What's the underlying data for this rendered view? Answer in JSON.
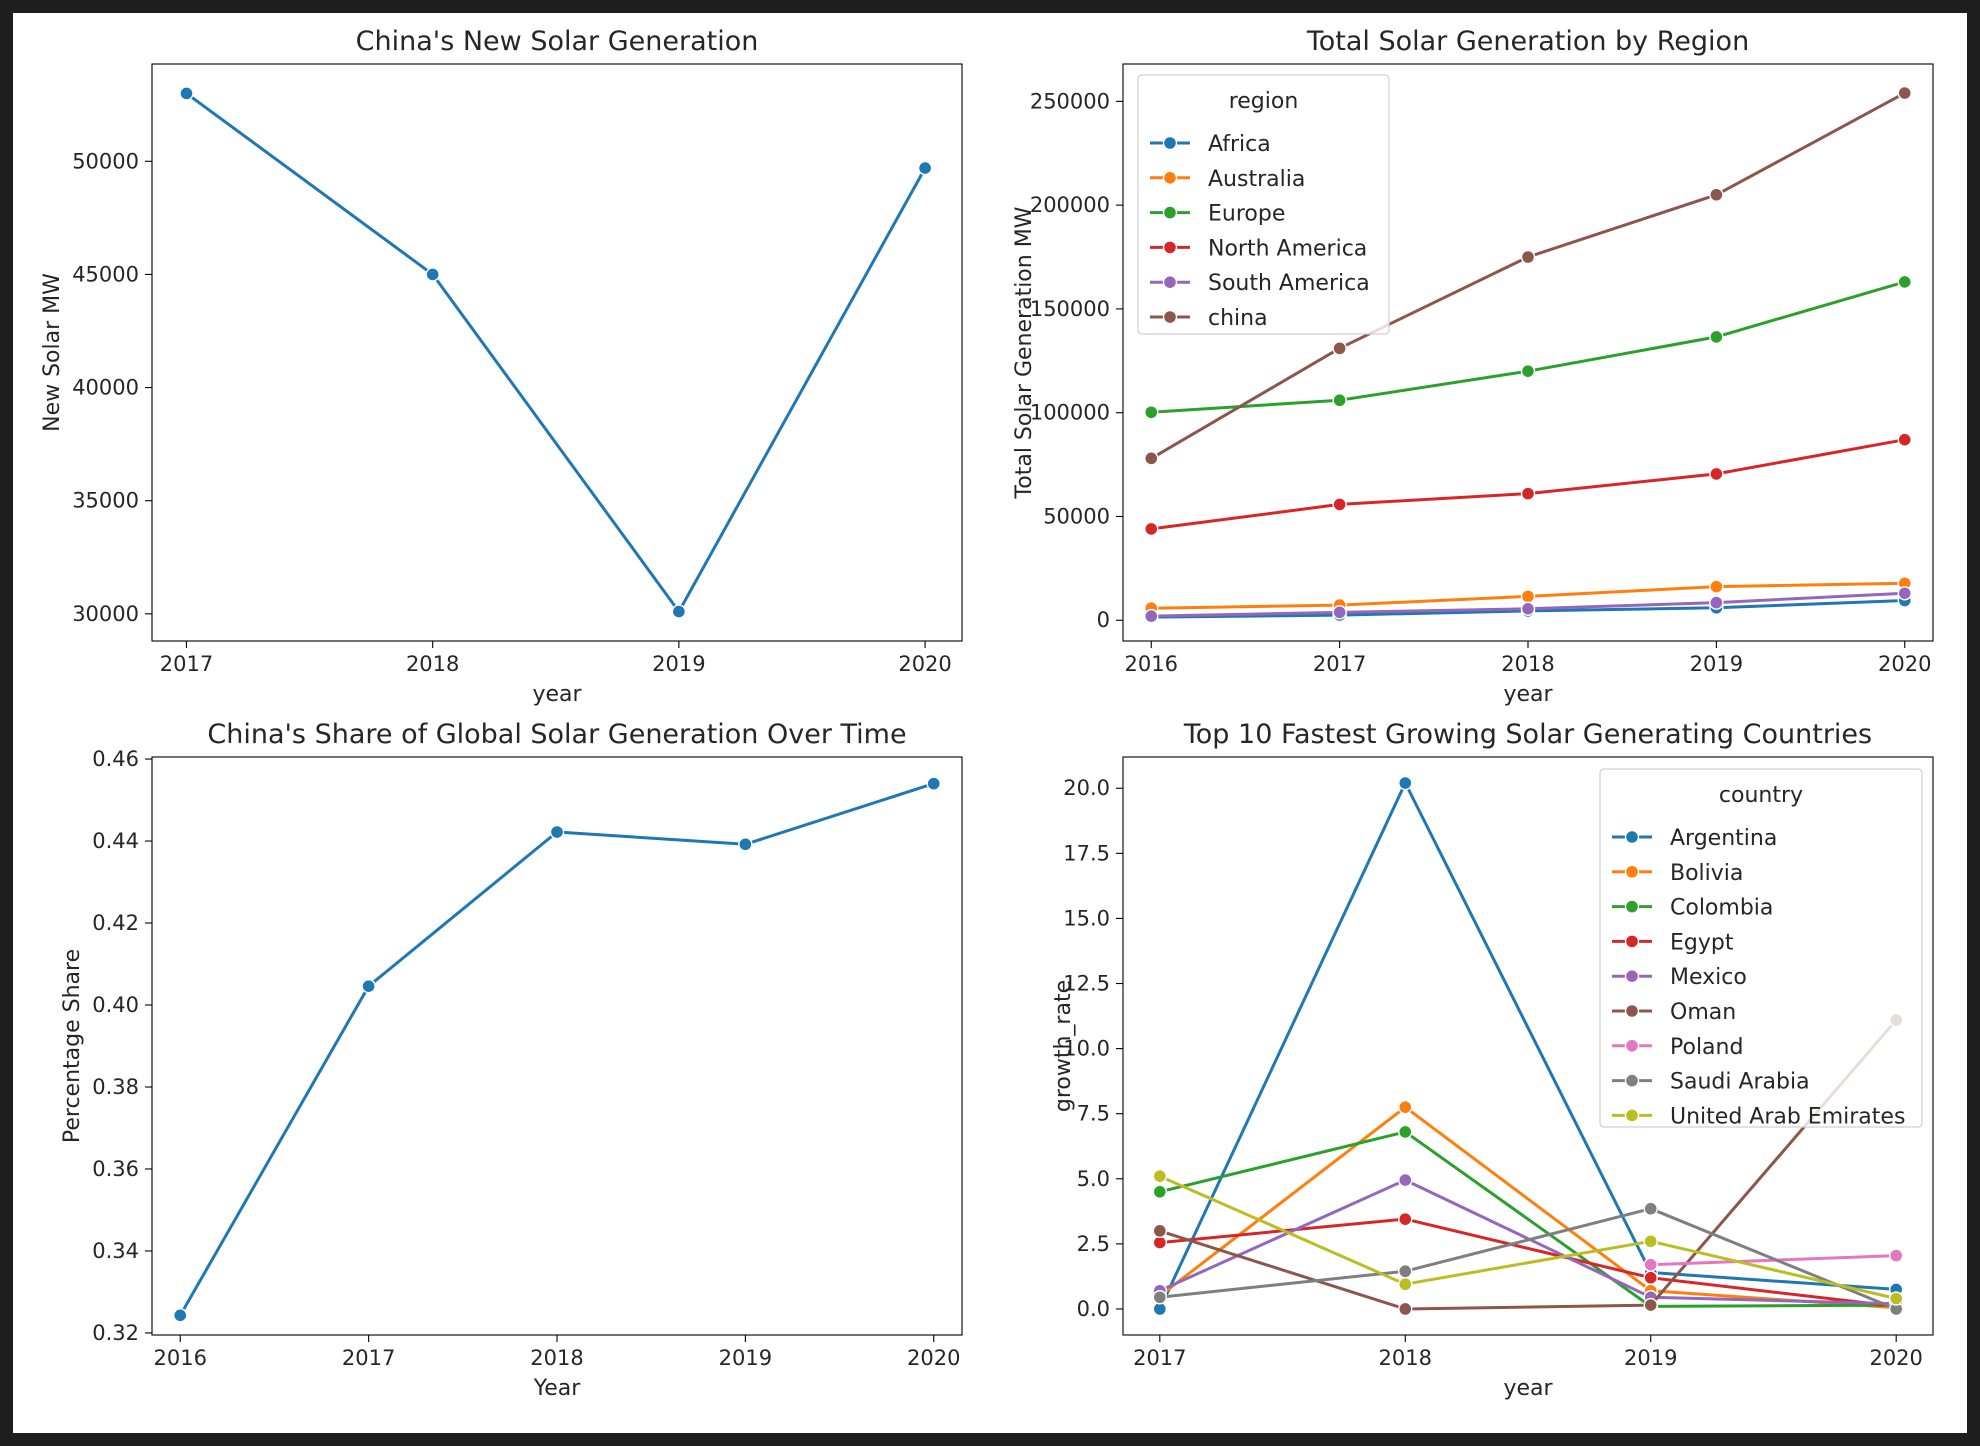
{
  "colors": {
    "tab_blue": "#1f77b4",
    "tab_orange": "#ff7f0e",
    "tab_green": "#2ca02c",
    "tab_red": "#d62728",
    "tab_purple": "#9467bd",
    "tab_brown": "#8c564b",
    "tab_pink": "#e377c2",
    "tab_gray": "#7f7f7f",
    "tab_olive": "#bcbd22"
  },
  "chart_data": [
    {
      "type": "line",
      "title": "China's New Solar Generation",
      "xlabel": "year",
      "ylabel": "New Solar MW",
      "x": [
        2017,
        2018,
        2019,
        2020
      ],
      "xticks": [
        "2017",
        "2018",
        "2019",
        "2020"
      ],
      "xlim": [
        2016.86,
        2020.15
      ],
      "ylim": [
        28800,
        54300
      ],
      "yticks": [
        30000,
        35000,
        40000,
        45000,
        50000
      ],
      "yticklabels": [
        "30000",
        "35000",
        "40000",
        "45000",
        "50000"
      ],
      "grid": false,
      "series": [
        {
          "color": "#1f77b4",
          "values": [
            53000,
            45000,
            30100,
            49700
          ]
        }
      ]
    },
    {
      "type": "line",
      "title": "Total Solar Generation by Region",
      "xlabel": "year",
      "ylabel": "Total Solar Generation MW",
      "x": [
        2016,
        2017,
        2018,
        2019,
        2020
      ],
      "xticks": [
        "2016",
        "2017",
        "2018",
        "2019",
        "2020"
      ],
      "xlim": [
        2015.85,
        2020.15
      ],
      "ylim": [
        -10000,
        268000
      ],
      "yticks": [
        0,
        50000,
        100000,
        150000,
        200000,
        250000
      ],
      "yticklabels": [
        "0",
        "50000",
        "100000",
        "150000",
        "200000",
        "250000"
      ],
      "grid": false,
      "legend": {
        "title": "region",
        "placement": "upper-left"
      },
      "series": [
        {
          "name": "Africa",
          "color": "#1f77b4",
          "values": [
            1500,
            2500,
            4500,
            6000,
            9500
          ]
        },
        {
          "name": "Australia",
          "color": "#ff7f0e",
          "values": [
            5800,
            7300,
            11500,
            16200,
            17800
          ]
        },
        {
          "name": "Europe",
          "color": "#2ca02c",
          "values": [
            100200,
            106000,
            120000,
            136500,
            163000
          ]
        },
        {
          "name": "North America",
          "color": "#d62728",
          "values": [
            44000,
            55800,
            61000,
            70500,
            87000
          ]
        },
        {
          "name": "South America",
          "color": "#9467bd",
          "values": [
            2000,
            3800,
            5500,
            8500,
            13000
          ]
        },
        {
          "name": "china",
          "color": "#8c564b",
          "values": [
            78000,
            131000,
            175000,
            205000,
            254000
          ]
        }
      ]
    },
    {
      "type": "line",
      "title": "China's Share of Global Solar Generation Over Time",
      "xlabel": "Year",
      "ylabel": "Percentage Share",
      "x": [
        2016,
        2017,
        2018,
        2019,
        2020
      ],
      "xticks": [
        "2016",
        "2017",
        "2018",
        "2019",
        "2020"
      ],
      "xlim": [
        2015.85,
        2020.15
      ],
      "ylim": [
        0.3195,
        0.4605
      ],
      "yticks": [
        0.32,
        0.34,
        0.36,
        0.38,
        0.4,
        0.42,
        0.44,
        0.46
      ],
      "yticklabels": [
        "0.32",
        "0.34",
        "0.36",
        "0.38",
        "0.40",
        "0.42",
        "0.44",
        "0.46"
      ],
      "grid": false,
      "series": [
        {
          "color": "#1f77b4",
          "values": [
            0.3243,
            0.4046,
            0.4422,
            0.4392,
            0.454
          ]
        }
      ]
    },
    {
      "type": "line",
      "title": "Top 10 Fastest Growing Solar Generating Countries",
      "xlabel": "year",
      "ylabel": "growth_rate",
      "x": [
        2017,
        2018,
        2019,
        2020
      ],
      "xticks": [
        "2017",
        "2018",
        "2019",
        "2020"
      ],
      "xlim": [
        2016.85,
        2020.15
      ],
      "ylim": [
        -1.0,
        21.2
      ],
      "yticks": [
        0,
        2.5,
        5,
        7.5,
        10,
        12.5,
        15,
        17.5,
        20
      ],
      "yticklabels": [
        "0.0",
        "2.5",
        "5.0",
        "7.5",
        "10.0",
        "12.5",
        "15.0",
        "17.5",
        "20.0"
      ],
      "grid": false,
      "legend": {
        "title": "country",
        "placement": "upper-right"
      },
      "series": [
        {
          "name": "Argentina",
          "color": "#1f77b4",
          "x": [
            2017,
            2018,
            2019,
            2020
          ],
          "values": [
            0.0,
            20.2,
            1.4,
            0.75
          ]
        },
        {
          "name": "Bolivia",
          "color": "#ff7f0e",
          "x": [
            2017,
            2018,
            2019,
            2020
          ],
          "values": [
            0.5,
            7.75,
            0.7,
            0.05
          ]
        },
        {
          "name": "Colombia",
          "color": "#2ca02c",
          "x": [
            2017,
            2018,
            2019,
            2020
          ],
          "values": [
            4.5,
            6.8,
            0.1,
            0.15
          ]
        },
        {
          "name": "Egypt",
          "color": "#d62728",
          "x": [
            2017,
            2018,
            2019,
            2020
          ],
          "values": [
            2.55,
            3.45,
            1.2,
            0.1
          ]
        },
        {
          "name": "Mexico",
          "color": "#9467bd",
          "x": [
            2017,
            2018,
            2019,
            2020
          ],
          "values": [
            0.7,
            4.95,
            0.45,
            0.2
          ]
        },
        {
          "name": "Oman",
          "color": "#8c564b",
          "x": [
            2017,
            2018,
            2019,
            2020
          ],
          "values": [
            3.0,
            0.0,
            0.15,
            11.1
          ]
        },
        {
          "name": "Poland",
          "color": "#e377c2",
          "x": [
            2019,
            2020
          ],
          "values": [
            1.7,
            2.05
          ]
        },
        {
          "name": "Saudi Arabia",
          "color": "#7f7f7f",
          "x": [
            2017,
            2018,
            2019,
            2020
          ],
          "values": [
            0.45,
            1.45,
            3.85,
            0.0
          ]
        },
        {
          "name": "United Arab Emirates",
          "color": "#bcbd22",
          "x": [
            2017,
            2018,
            2019,
            2020
          ],
          "values": [
            5.1,
            0.95,
            2.6,
            0.4
          ]
        }
      ]
    }
  ]
}
